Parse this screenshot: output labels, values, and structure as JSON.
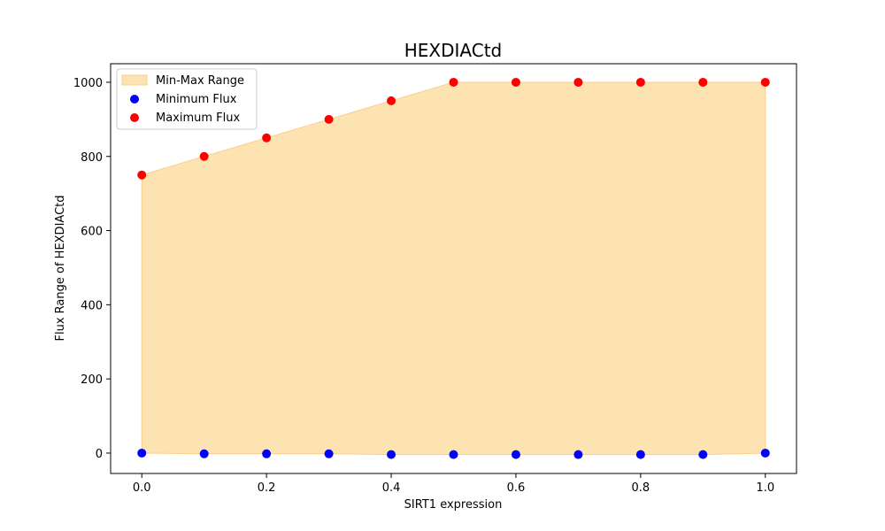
{
  "chart_data": {
    "type": "scatter",
    "title": "HEXDIACtd",
    "xlabel": "SIRT1 expression",
    "ylabel": "Flux Range of HEXDIACtd",
    "x": [
      0.0,
      0.1,
      0.2,
      0.3,
      0.4,
      0.5,
      0.6,
      0.7,
      0.8,
      0.9,
      1.0
    ],
    "series": [
      {
        "name": "Minimum Flux",
        "color": "#0000ff",
        "values": [
          0,
          -2,
          -2,
          -2,
          -4,
          -4,
          -4,
          -4,
          -4,
          -4,
          0
        ]
      },
      {
        "name": "Maximum Flux",
        "color": "#ff0000",
        "values": [
          750,
          800,
          850,
          900,
          950,
          1000,
          1000,
          1000,
          1000,
          1000,
          1000
        ]
      }
    ],
    "fill": {
      "name": "Min-Max Range",
      "color": "#fde2b2",
      "edge_color": "#f9d08c"
    },
    "xlim": [
      -0.05,
      1.05
    ],
    "ylim": [
      -55,
      1050
    ],
    "xticks": [
      "0.0",
      "0.2",
      "0.4",
      "0.6",
      "0.8",
      "1.0"
    ],
    "xtick_values": [
      0.0,
      0.2,
      0.4,
      0.6,
      0.8,
      1.0
    ],
    "yticks": [
      "0",
      "200",
      "400",
      "600",
      "800",
      "1000"
    ],
    "ytick_values": [
      0,
      200,
      400,
      600,
      800,
      1000
    ],
    "grid": false,
    "legend_position": "top-left"
  }
}
